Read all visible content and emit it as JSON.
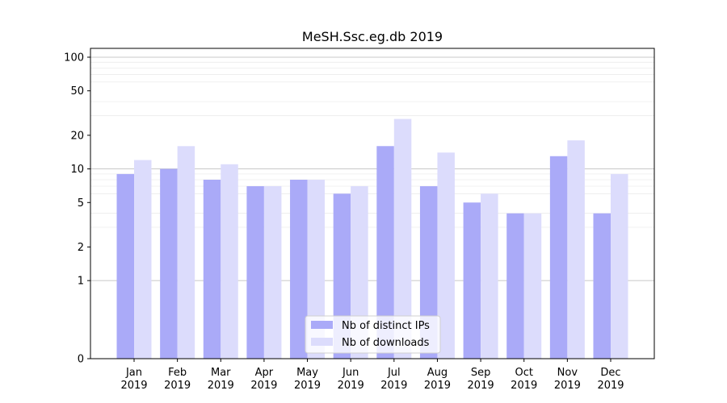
{
  "chart_data": {
    "type": "bar",
    "title": "MeSH.Ssc.eg.db 2019",
    "xlabel": "",
    "ylabel": "",
    "categories": [
      [
        "Jan",
        "2019"
      ],
      [
        "Feb",
        "2019"
      ],
      [
        "Mar",
        "2019"
      ],
      [
        "Apr",
        "2019"
      ],
      [
        "May",
        "2019"
      ],
      [
        "Jun",
        "2019"
      ],
      [
        "Jul",
        "2019"
      ],
      [
        "Aug",
        "2019"
      ],
      [
        "Sep",
        "2019"
      ],
      [
        "Oct",
        "2019"
      ],
      [
        "Nov",
        "2019"
      ],
      [
        "Dec",
        "2019"
      ]
    ],
    "series": [
      {
        "name": "Nb of distinct IPs",
        "color": "#aaaaf8",
        "values": [
          9,
          10,
          8,
          7,
          8,
          6,
          16,
          7,
          5,
          4,
          13,
          4
        ]
      },
      {
        "name": "Nb of downloads",
        "color": "#dcdcfc",
        "values": [
          12,
          16,
          11,
          7,
          8,
          7,
          28,
          14,
          6,
          4,
          18,
          9
        ]
      }
    ],
    "yscale": "symlog",
    "ylim": [
      0,
      120
    ],
    "yticks": [
      0,
      1,
      2,
      5,
      10,
      20,
      50,
      100
    ],
    "ytick_labels": [
      "0",
      "1",
      "2",
      "5",
      "10",
      "20",
      "50",
      "100"
    ],
    "grid": true,
    "legend_position": "lower center"
  }
}
